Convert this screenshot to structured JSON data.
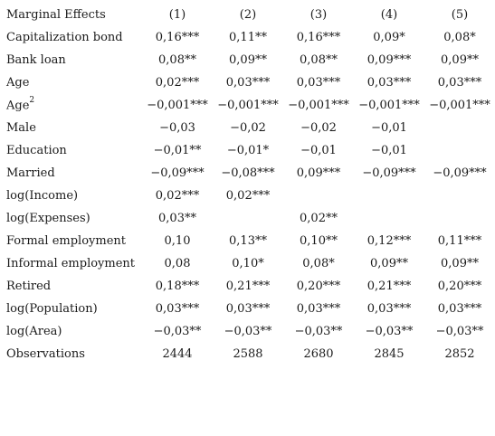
{
  "table": {
    "header_label": "Marginal Effects",
    "columns": [
      "(1)",
      "(2)",
      "(3)",
      "(4)",
      "(5)"
    ],
    "rows": [
      {
        "label": "Capitalization bond",
        "values": [
          "0,16***",
          "0,11**",
          "0,16***",
          "0,09*",
          "0,08*"
        ]
      },
      {
        "label": "Bank loan",
        "values": [
          "0,08**",
          "0,09**",
          "0,08**",
          "0,09***",
          "0,09**"
        ]
      },
      {
        "label": "Age",
        "values": [
          "0,02***",
          "0,03***",
          "0,03***",
          "0,03***",
          "0,03***"
        ]
      },
      {
        "label": "Age",
        "sup": "2",
        "values": [
          "−0,001***",
          "−0,001***",
          "−0,001***",
          "−0,001***",
          "−0,001***"
        ]
      },
      {
        "label": "Male",
        "values": [
          "−0,03",
          "−0,02",
          "−0,02",
          "−0,01",
          ""
        ]
      },
      {
        "label": "Education",
        "values": [
          "−0,01**",
          "−0,01*",
          "−0,01",
          "−0,01",
          ""
        ]
      },
      {
        "label": "Married",
        "values": [
          "−0,09***",
          "−0,08***",
          "0,09***",
          "−0,09***",
          "−0,09***"
        ]
      },
      {
        "label": "log(Income)",
        "values": [
          "0,02***",
          "0,02***",
          "",
          "",
          ""
        ]
      },
      {
        "label": "log(Expenses)",
        "values": [
          "0,03**",
          "",
          "0,02**",
          "",
          ""
        ]
      },
      {
        "label": "Formal employment",
        "values": [
          "0,10",
          "0,13**",
          "0,10**",
          "0,12***",
          "0,11***"
        ]
      },
      {
        "label": "Informal employment",
        "values": [
          "0,08",
          "0,10*",
          "0,08*",
          "0,09**",
          "0,09**"
        ]
      },
      {
        "label": "Retired",
        "values": [
          "0,18***",
          "0,21***",
          "0,20***",
          "0,21***",
          "0,20***"
        ]
      },
      {
        "label": "log(Population)",
        "values": [
          "0,03***",
          "0,03***",
          "0,03***",
          "0,03***",
          "0,03***"
        ]
      },
      {
        "label": "log(Area)",
        "values": [
          "−0,03**",
          "−0,03**",
          "−0,03**",
          "−0,03**",
          "−0,03**"
        ]
      },
      {
        "label": "Observations",
        "values": [
          "2444",
          "2588",
          "2680",
          "2845",
          "2852"
        ]
      }
    ]
  }
}
